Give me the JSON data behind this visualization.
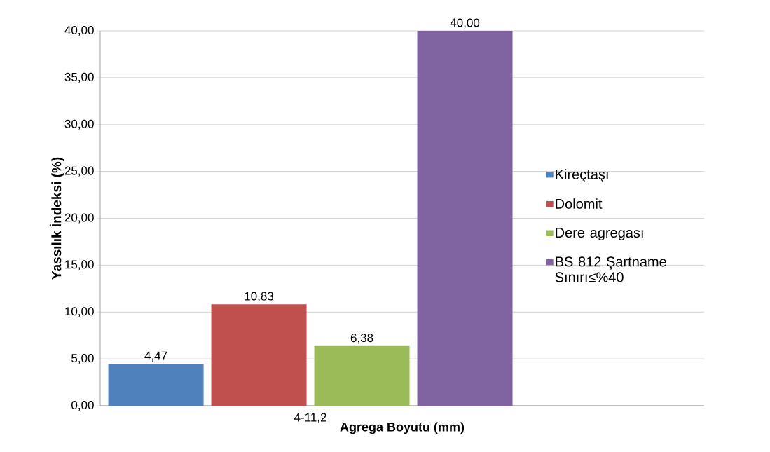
{
  "chart_data": {
    "type": "bar",
    "xlabel": "Agrega Boyutu (mm)",
    "ylabel": "Yassılık İndeksi (%)",
    "categories": [
      "4-11,2"
    ],
    "series": [
      {
        "name": "Kireçtaşı",
        "color": "#4f81bd",
        "values": [
          4.47
        ],
        "value_labels": [
          "4,47"
        ]
      },
      {
        "name": "Dolomit",
        "color": "#c0504d",
        "values": [
          10.83
        ],
        "value_labels": [
          "10,83"
        ]
      },
      {
        "name": "Dere agregası",
        "color": "#9bbb59",
        "values": [
          6.38
        ],
        "value_labels": [
          "6,38"
        ]
      },
      {
        "name": "BS 812 Şartname Sınırı≤%40",
        "color": "#8064a2",
        "values": [
          40.0
        ],
        "value_labels": [
          "40,00"
        ]
      }
    ],
    "ylim": [
      0,
      40
    ],
    "yticks": [
      {
        "value": 0,
        "label": "0,00"
      },
      {
        "value": 5,
        "label": "5,00"
      },
      {
        "value": 10,
        "label": "10,00"
      },
      {
        "value": 15,
        "label": "15,00"
      },
      {
        "value": 20,
        "label": "20,00"
      },
      {
        "value": 25,
        "label": "25,00"
      },
      {
        "value": 30,
        "label": "30,00"
      },
      {
        "value": 35,
        "label": "35,00"
      },
      {
        "value": 40,
        "label": "40,00"
      }
    ],
    "grid": "y",
    "legend": "right"
  }
}
